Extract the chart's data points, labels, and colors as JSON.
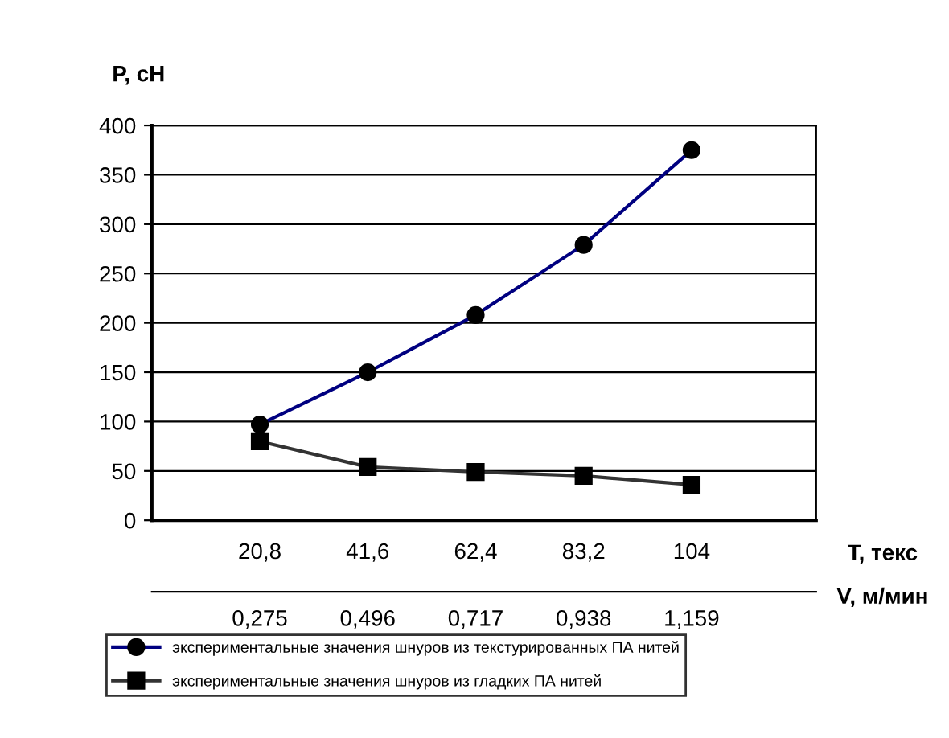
{
  "chart_data": {
    "type": "line",
    "ylabel": "P, сН",
    "xlabel": "T, текс",
    "x2label": "V, м/мин",
    "x": [
      20.8,
      41.6,
      62.4,
      83.2,
      104
    ],
    "xlim": [
      0,
      128
    ],
    "xticks": [
      {
        "value": 20.8,
        "label": "20,8"
      },
      {
        "value": 41.6,
        "label": "41,6"
      },
      {
        "value": 62.4,
        "label": "62,4"
      },
      {
        "value": 83.2,
        "label": "83,2"
      },
      104
    ],
    "x2lim": [
      0.054,
      1.414
    ],
    "x2ticks": [
      {
        "value": 0.275,
        "label": "0,275"
      },
      {
        "value": 0.496,
        "label": "0,496"
      },
      {
        "value": 0.717,
        "label": "0,717"
      },
      {
        "value": 0.938,
        "label": "0,938"
      },
      {
        "value": 1.159,
        "label": "1,159"
      }
    ],
    "ylim": [
      0,
      400
    ],
    "yticks": [
      0,
      50,
      100,
      150,
      200,
      250,
      300,
      350,
      400
    ],
    "grid": "y",
    "legend": "bottom",
    "line_style": "solid",
    "series": [
      {
        "name": "экспериментальные значения шнуров из текстурированных ПА нитей",
        "color": "#000080",
        "marker": "circle",
        "values": [
          97,
          150,
          208,
          279,
          375
        ]
      },
      {
        "name": "экспериментальные значения шнуров из гладких ПА нитей",
        "color": "#333333",
        "marker": "square",
        "values": [
          80,
          54,
          49,
          45,
          36
        ]
      }
    ]
  }
}
